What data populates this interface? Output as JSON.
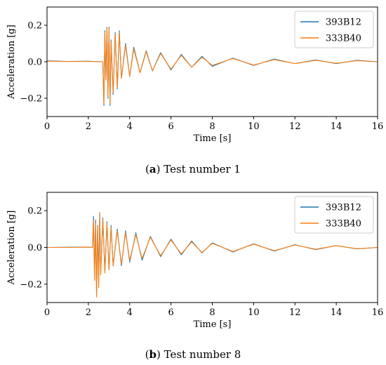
{
  "figure": {
    "captions": [
      {
        "letter": "a",
        "text": "Test number 1"
      },
      {
        "letter": "b",
        "text": "Test number 8"
      }
    ]
  },
  "colors": {
    "series1": "#1f77b4",
    "series2": "#ff7f0e",
    "axis": "#000000"
  },
  "chart_data": [
    {
      "type": "line",
      "xlabel": "Time [s]",
      "ylabel": "Acceleration [g]",
      "xlim": [
        0,
        16
      ],
      "ylim": [
        -0.3,
        0.3
      ],
      "xticks": [
        0,
        2,
        4,
        6,
        8,
        10,
        12,
        14,
        16
      ],
      "yticks": [
        -0.2,
        0.0,
        0.2
      ],
      "ytick_labels": [
        "−0.2",
        "0.0",
        "0.2"
      ],
      "grid": false,
      "legend_position": "top-right",
      "series": [
        {
          "name": "393B12",
          "x": [
            0,
            1,
            2,
            2.7,
            2.75,
            2.8,
            2.85,
            2.9,
            2.95,
            3.0,
            3.05,
            3.1,
            3.2,
            3.3,
            3.4,
            3.5,
            3.6,
            3.8,
            4.0,
            4.2,
            4.5,
            4.8,
            5.1,
            5.5,
            6.0,
            6.5,
            7.0,
            7.5,
            8.0,
            9.0,
            10.0,
            11.0,
            12.0,
            13.0,
            14.0,
            15.0,
            16.0
          ],
          "values": [
            0.005,
            0.002,
            0.003,
            0.0,
            -0.24,
            0.17,
            -0.1,
            0.19,
            -0.2,
            0.19,
            -0.24,
            0.12,
            -0.18,
            0.16,
            -0.15,
            0.17,
            -0.09,
            0.1,
            -0.08,
            0.08,
            -0.06,
            0.06,
            -0.05,
            0.05,
            -0.045,
            0.04,
            -0.03,
            0.03,
            -0.025,
            0.02,
            -0.02,
            0.015,
            -0.01,
            0.01,
            -0.01,
            0.008,
            0.0
          ]
        },
        {
          "name": "333B40",
          "x": [
            0,
            1,
            2,
            2.7,
            2.75,
            2.8,
            2.85,
            2.9,
            2.95,
            3.0,
            3.05,
            3.1,
            3.2,
            3.3,
            3.4,
            3.5,
            3.6,
            3.8,
            4.0,
            4.2,
            4.5,
            4.8,
            5.1,
            5.5,
            6.0,
            6.5,
            7.0,
            7.5,
            8.0,
            9.0,
            10.0,
            11.0,
            12.0,
            13.0,
            14.0,
            15.0,
            16.0
          ],
          "values": [
            0.003,
            0.001,
            0.002,
            0.0,
            -0.23,
            0.16,
            -0.1,
            0.19,
            -0.19,
            0.18,
            -0.23,
            0.11,
            -0.17,
            0.15,
            -0.14,
            0.16,
            -0.09,
            0.09,
            -0.08,
            0.07,
            -0.06,
            0.055,
            -0.05,
            0.045,
            -0.04,
            0.035,
            -0.03,
            0.025,
            -0.02,
            0.018,
            -0.018,
            0.012,
            -0.01,
            0.008,
            -0.008,
            0.006,
            0.0
          ]
        }
      ]
    },
    {
      "type": "line",
      "xlabel": "Time [s]",
      "ylabel": "Acceleration [g]",
      "xlim": [
        0,
        16
      ],
      "ylim": [
        -0.3,
        0.3
      ],
      "xticks": [
        0,
        2,
        4,
        6,
        8,
        10,
        12,
        14,
        16
      ],
      "yticks": [
        -0.2,
        0.0,
        0.2
      ],
      "ytick_labels": [
        "−0.2",
        "0.0",
        "0.2"
      ],
      "grid": false,
      "legend_position": "top-right",
      "series": [
        {
          "name": "393B12",
          "x": [
            0,
            1,
            2,
            2.2,
            2.25,
            2.3,
            2.35,
            2.4,
            2.45,
            2.5,
            2.55,
            2.6,
            2.7,
            2.8,
            2.9,
            3.0,
            3.1,
            3.2,
            3.4,
            3.6,
            3.8,
            4.0,
            4.3,
            4.6,
            5.0,
            5.5,
            6.0,
            6.5,
            7.0,
            7.5,
            8.0,
            9.0,
            10.0,
            11.0,
            12.0,
            13.0,
            14.0,
            15.0,
            16.0
          ],
          "values": [
            0.0,
            0.001,
            0.002,
            0.0,
            0.17,
            -0.15,
            0.15,
            -0.26,
            0.12,
            -0.2,
            0.19,
            -0.14,
            0.16,
            -0.13,
            0.14,
            -0.12,
            0.12,
            -0.1,
            0.1,
            -0.1,
            0.09,
            -0.08,
            0.08,
            -0.07,
            0.06,
            -0.05,
            0.045,
            -0.04,
            0.035,
            -0.03,
            0.025,
            -0.025,
            0.02,
            -0.02,
            0.015,
            -0.012,
            0.01,
            -0.008,
            0.0
          ]
        },
        {
          "name": "333B40",
          "x": [
            0,
            1,
            2,
            2.2,
            2.25,
            2.3,
            2.35,
            2.4,
            2.45,
            2.5,
            2.55,
            2.6,
            2.7,
            2.8,
            2.9,
            3.0,
            3.1,
            3.2,
            3.4,
            3.6,
            3.8,
            4.0,
            4.3,
            4.6,
            5.0,
            5.5,
            6.0,
            6.5,
            7.0,
            7.5,
            8.0,
            9.0,
            10.0,
            11.0,
            12.0,
            13.0,
            14.0,
            15.0,
            16.0
          ],
          "values": [
            0.0,
            0.0,
            0.001,
            0.0,
            0.15,
            -0.18,
            0.13,
            -0.27,
            0.11,
            -0.22,
            0.19,
            -0.15,
            0.15,
            -0.14,
            0.13,
            -0.12,
            0.11,
            -0.1,
            0.09,
            -0.09,
            0.08,
            -0.07,
            0.07,
            -0.06,
            0.055,
            -0.045,
            0.04,
            -0.035,
            0.03,
            -0.028,
            0.022,
            -0.022,
            0.018,
            -0.018,
            0.013,
            -0.01,
            0.009,
            -0.007,
            0.0
          ]
        }
      ]
    }
  ]
}
